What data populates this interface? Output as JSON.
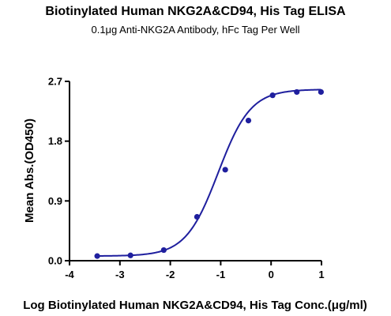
{
  "chart_data": {
    "type": "scatter",
    "title": "Biotinylated Human NKG2A&CD94, His Tag ELISA",
    "subtitle": "0.1μg Anti-NKG2A Antibody, hFc Tag Per Well",
    "xlabel": "Log Biotinylated Human NKG2A&CD94, His Tag Conc.(μg/ml)",
    "ylabel": "Mean Abs.(OD450)",
    "xlim": [
      -4,
      1
    ],
    "ylim": [
      0,
      2.7
    ],
    "xticks": [
      "-4",
      "-3",
      "-2",
      "-1",
      "0",
      "1"
    ],
    "yticks": [
      "0.0",
      "0.9",
      "1.8",
      "2.7"
    ],
    "points": [
      {
        "x": -3.45,
        "y": 0.07
      },
      {
        "x": -2.79,
        "y": 0.08
      },
      {
        "x": -2.13,
        "y": 0.16
      },
      {
        "x": -1.47,
        "y": 0.66
      },
      {
        "x": -0.91,
        "y": 1.37
      },
      {
        "x": -0.45,
        "y": 2.11
      },
      {
        "x": 0.03,
        "y": 2.49
      },
      {
        "x": 0.51,
        "y": 2.54
      },
      {
        "x": 0.99,
        "y": 2.54
      }
    ],
    "fit_curve": {
      "bottom": 0.07,
      "top": 2.58,
      "logEC50": -1.05,
      "hill": 1.35
    },
    "color": "#1f1f9e",
    "grid": false,
    "legend": "none"
  }
}
